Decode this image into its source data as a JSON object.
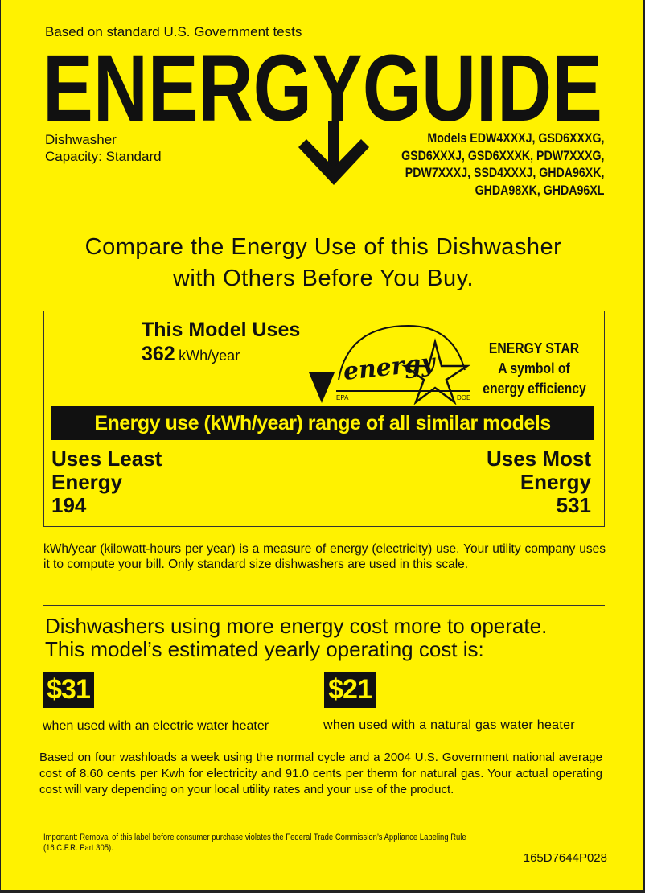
{
  "header": {
    "tests_note": "Based on standard U.S. Government tests",
    "logo_text": "ENERGYGUIDE",
    "appliance": "Dishwasher",
    "capacity": "Capacity: Standard",
    "models": [
      "Models EDW4XXXJ, GSD6XXXG,",
      "GSD6XXXJ, GSD6XXXK, PDW7XXXG,",
      "PDW7XXXJ, SSD4XXXJ, GHDA96XK,",
      "GHDA98XK, GHDA96XL"
    ]
  },
  "compare": [
    "Compare the Energy Use of this Dishwasher",
    "with Others Before You Buy."
  ],
  "usage": {
    "title": "This Model Uses",
    "value": "362",
    "unit": "kWh/year",
    "range_label": "Energy use (kWh/year) range of all similar models",
    "least_label": [
      "Uses Least",
      "Energy"
    ],
    "least_value": "194",
    "most_label": [
      "Uses Most",
      "Energy"
    ],
    "most_value": "531",
    "energy_star": {
      "logo_script": "energy",
      "logo_left": "EPA",
      "logo_right": "DOE",
      "lines": [
        "ENERGY STAR",
        "A symbol of",
        "energy efficiency"
      ]
    }
  },
  "explanation": "kWh/year (kilowatt-hours per year) is a measure of energy (electricity) use. Your utility company uses it to compute your bill. Only standard size dishwashers are used in this scale.",
  "cost": {
    "heading": [
      "Dishwashers using more energy cost more to operate.",
      "This model’s estimated yearly operating cost is:"
    ],
    "electric_value": "$31",
    "electric_label": "when used with an electric water heater",
    "gas_value": "$21",
    "gas_label": "when used with a natural gas water heater",
    "basis": "Based on four washloads a week using the normal cycle and a 2004 U.S. Government national average cost of 8.60 cents per Kwh for electricity and 91.0 cents per therm for natural gas. Your actual operating cost will vary depending on your local utility rates and your use of the product."
  },
  "footer": {
    "legal": [
      "Important: Removal of this label before consumer purchase violates the Federal Trade Commission’s Appliance Labeling Rule",
      "(16 C.F.R. Part 305)."
    ],
    "part_number": "165D7644P028"
  },
  "colors": {
    "label_yellow": "#fff200",
    "ink": "#111111"
  }
}
